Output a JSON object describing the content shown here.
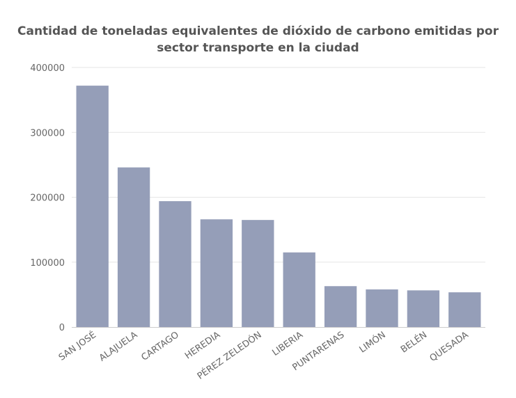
{
  "chart_data": {
    "type": "bar",
    "title": "Cantidad de toneladas equivalentes de dióxido de carbono emitidas por sector transporte en la ciudad",
    "xlabel": "",
    "ylabel": "",
    "categories": [
      "SAN JOSÉ",
      "ALAJUELA",
      "CARTAGO",
      "HEREDIA",
      "PÉREZ ZELEDÓN",
      "LIBERIA",
      "PUNTARENAS",
      "LIMÓN",
      "BELÉN",
      "QUESADA"
    ],
    "values": [
      372000,
      246000,
      194000,
      166000,
      165000,
      115000,
      63000,
      58000,
      56500,
      53500
    ],
    "ylim": [
      0,
      400000
    ],
    "yticks": [
      "0",
      "100000",
      "200000",
      "300000",
      "400000"
    ],
    "grid": true,
    "legend": "none",
    "bar_color": "#959eb8",
    "grid_color": "#e6e6e6",
    "axis_color": "#cccccc"
  }
}
